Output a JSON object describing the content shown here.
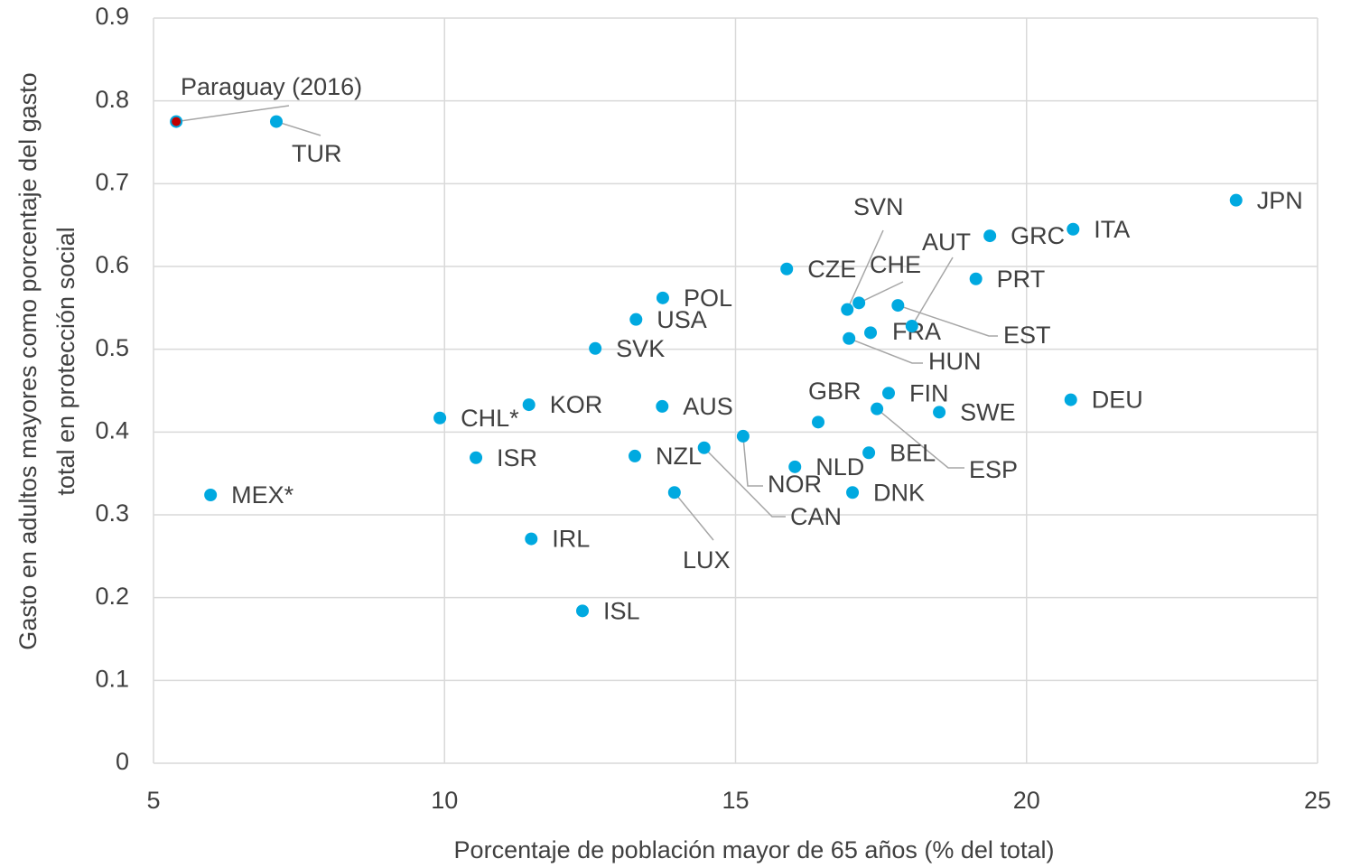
{
  "chart_data": {
    "type": "scatter",
    "xlabel": "Porcentaje de población mayor de 65 años (% del total)",
    "ylabel": [
      "Gasto en adultos mayores como porcentaje del gasto",
      "total en protección social"
    ],
    "xlim": [
      5,
      25
    ],
    "xticks": [
      5,
      10,
      15,
      20,
      25
    ],
    "ylim": [
      0,
      0.9
    ],
    "yticks": [
      0,
      0.1,
      0.2,
      0.3,
      0.4,
      0.5,
      0.6,
      0.7,
      0.8,
      0.9
    ],
    "grid": true,
    "color": "#00a9e0",
    "points": [
      {
        "label": "Paraguay (2016)",
        "x": 5.39,
        "y": 0.775,
        "color": "#c00000"
      },
      {
        "label": "TUR",
        "x": 7.11,
        "y": 0.775
      },
      {
        "label": "MEX*",
        "x": 5.98,
        "y": 0.324
      },
      {
        "label": "CHL*",
        "x": 9.92,
        "y": 0.417
      },
      {
        "label": "ISR",
        "x": 10.54,
        "y": 0.369
      },
      {
        "label": "KOR",
        "x": 11.45,
        "y": 0.433
      },
      {
        "label": "IRL",
        "x": 11.49,
        "y": 0.271
      },
      {
        "label": "ISL",
        "x": 12.37,
        "y": 0.184
      },
      {
        "label": "SVK",
        "x": 12.59,
        "y": 0.501
      },
      {
        "label": "USA",
        "x": 13.29,
        "y": 0.536
      },
      {
        "label": "NZL",
        "x": 13.27,
        "y": 0.371
      },
      {
        "label": "POL",
        "x": 13.75,
        "y": 0.562
      },
      {
        "label": "AUS",
        "x": 13.74,
        "y": 0.431
      },
      {
        "label": "LUX",
        "x": 13.95,
        "y": 0.327
      },
      {
        "label": "CAN",
        "x": 14.46,
        "y": 0.381
      },
      {
        "label": "NOR",
        "x": 15.13,
        "y": 0.395
      },
      {
        "label": "CZE",
        "x": 15.88,
        "y": 0.597
      },
      {
        "label": "NLD",
        "x": 16.02,
        "y": 0.358
      },
      {
        "label": "GBR",
        "x": 16.42,
        "y": 0.412
      },
      {
        "label": "SVN",
        "x": 16.92,
        "y": 0.548
      },
      {
        "label": "HUN",
        "x": 16.95,
        "y": 0.513
      },
      {
        "label": "CHE",
        "x": 17.12,
        "y": 0.556
      },
      {
        "label": "DNK",
        "x": 17.01,
        "y": 0.327
      },
      {
        "label": "BEL",
        "x": 17.29,
        "y": 0.375
      },
      {
        "label": "FRA",
        "x": 17.32,
        "y": 0.52
      },
      {
        "label": "ESP",
        "x": 17.43,
        "y": 0.428
      },
      {
        "label": "FIN",
        "x": 17.63,
        "y": 0.447
      },
      {
        "label": "EST",
        "x": 17.79,
        "y": 0.553
      },
      {
        "label": "AUT",
        "x": 18.03,
        "y": 0.528
      },
      {
        "label": "SWE",
        "x": 18.5,
        "y": 0.424
      },
      {
        "label": "PRT",
        "x": 19.13,
        "y": 0.585
      },
      {
        "label": "GRC",
        "x": 19.37,
        "y": 0.637
      },
      {
        "label": "DEU",
        "x": 20.76,
        "y": 0.439
      },
      {
        "label": "ITA",
        "x": 20.8,
        "y": 0.645
      },
      {
        "label": "JPN",
        "x": 23.6,
        "y": 0.68
      }
    ]
  }
}
